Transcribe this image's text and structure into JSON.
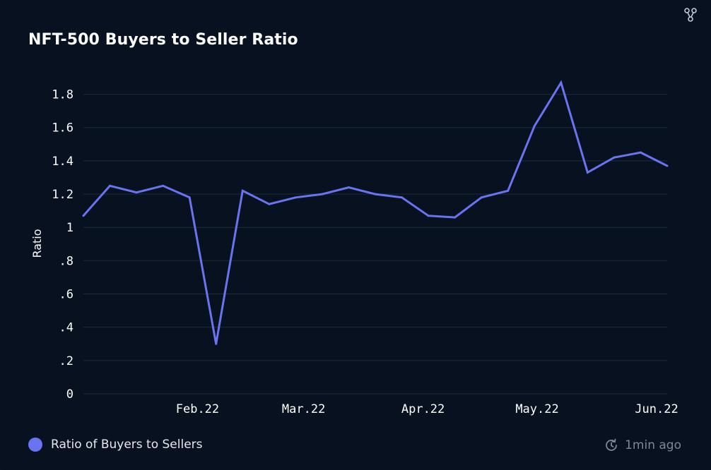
{
  "header": {
    "title": "NFT-500 Buyers to Seller Ratio"
  },
  "icons": {
    "share": "share-network-icon",
    "refresh": "refresh-clock-icon"
  },
  "legend": {
    "label": "Ratio of Buyers to Sellers",
    "color": "#6a73f0"
  },
  "footer": {
    "updated_text": "1min ago"
  },
  "colors": {
    "background": "#07111f",
    "line": "#6a73f0",
    "grid": "#1f2c3d"
  },
  "chart_data": {
    "type": "line",
    "title": "NFT-500 Buyers to Seller Ratio",
    "xlabel": "",
    "ylabel": "Ratio",
    "ylim": [
      0,
      1.9
    ],
    "yticks": [
      0,
      0.2,
      0.4,
      0.6,
      0.8,
      1.0,
      1.2,
      1.4,
      1.6,
      1.8
    ],
    "yticklabels": [
      "0",
      ".2",
      ".4",
      ".6",
      ".8",
      "1",
      "1.2",
      "1.4",
      "1.6",
      "1.8"
    ],
    "xticklabels": [
      "Feb.22",
      "Mar.22",
      "Apr.22",
      "May.22",
      "Jun.22"
    ],
    "xtick_positions": [
      4.3,
      8.3,
      12.8,
      17.1,
      21.6
    ],
    "xlim": [
      0,
      22
    ],
    "grid": true,
    "legend_position": "bottom-left",
    "series": [
      {
        "name": "Ratio of Buyers to Sellers",
        "x": [
          0,
          1,
          2,
          3,
          4,
          5,
          6,
          7,
          8,
          9,
          10,
          11,
          12,
          13,
          14,
          15,
          16,
          17,
          18,
          19,
          20,
          21,
          22
        ],
        "values": [
          1.07,
          1.25,
          1.21,
          1.25,
          1.18,
          0.3,
          1.22,
          1.14,
          1.18,
          1.2,
          1.24,
          1.2,
          1.18,
          1.07,
          1.06,
          1.18,
          1.22,
          1.61,
          1.87,
          1.33,
          1.42,
          1.45,
          1.37
        ]
      }
    ]
  }
}
